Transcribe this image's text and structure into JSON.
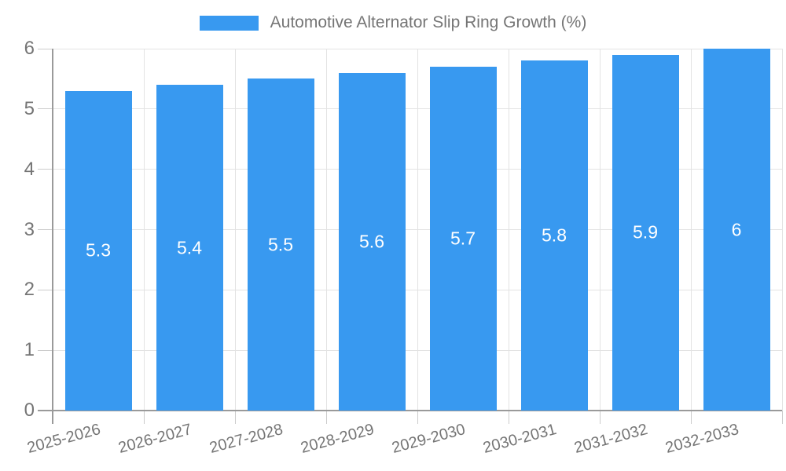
{
  "chart_data": {
    "type": "bar",
    "title": "Automotive Alternator Slip Ring Growth (%)",
    "categories": [
      "2025-2026",
      "2026-2027",
      "2027-2028",
      "2028-2029",
      "2029-2030",
      "2030-2031",
      "2031-2032",
      "2032-2033"
    ],
    "values": [
      5.3,
      5.4,
      5.5,
      5.6,
      5.7,
      5.8,
      5.9,
      6
    ],
    "value_labels": [
      "5.3",
      "5.4",
      "5.5",
      "5.6",
      "5.7",
      "5.8",
      "5.9",
      "6"
    ],
    "xlabel": "",
    "ylabel": "",
    "ylim": [
      0,
      6
    ],
    "yticks": [
      0,
      1,
      2,
      3,
      4,
      5,
      6
    ],
    "grid": true,
    "legend_position": "top-center",
    "colors": {
      "bar": "#3899f0",
      "bar_value_text": "#ffffff",
      "axis_line": "#9a9a9a",
      "grid_line": "#e3e3e3",
      "tick_line": "#cccccc",
      "tick_text": "#757575",
      "title_text": "#757575",
      "background": "#ffffff"
    }
  }
}
